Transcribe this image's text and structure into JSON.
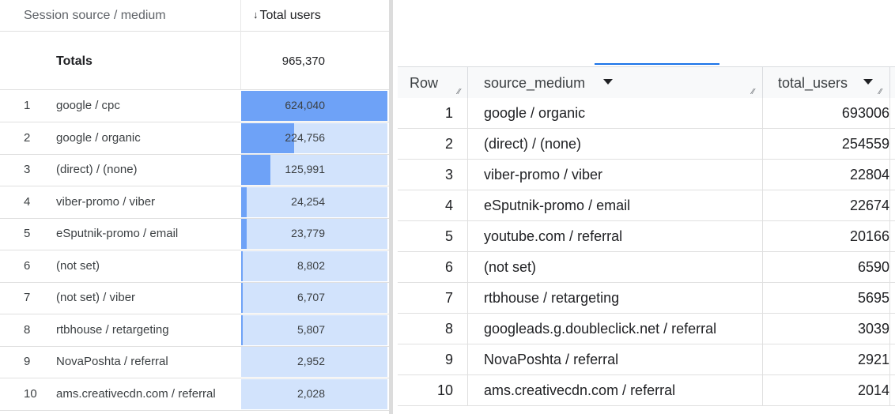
{
  "ga_table": {
    "header": {
      "dimension": "Session source / medium",
      "metric_arrow": "↓",
      "metric": "Total users"
    },
    "totals": {
      "label": "Totals",
      "value": "965,370"
    },
    "bar_color": "#6ea2f7",
    "cell_color": "#d2e3fc",
    "rows": [
      {
        "index": "1",
        "dimension": "google / cpc",
        "value": "624,040",
        "share": 1.0
      },
      {
        "index": "2",
        "dimension": "google / organic",
        "value": "224,756",
        "share": 0.36
      },
      {
        "index": "3",
        "dimension": "(direct) / (none)",
        "value": "125,991",
        "share": 0.2
      },
      {
        "index": "4",
        "dimension": "viber-promo / viber",
        "value": "24,254",
        "share": 0.04
      },
      {
        "index": "5",
        "dimension": "eSputnik-promo / email",
        "value": "23,779",
        "share": 0.04
      },
      {
        "index": "6",
        "dimension": "(not set)",
        "value": "8,802",
        "share": 0.01
      },
      {
        "index": "7",
        "dimension": "(not set) / viber",
        "value": "6,707",
        "share": 0.01
      },
      {
        "index": "8",
        "dimension": "rtbhouse / retargeting",
        "value": "5,807",
        "share": 0.01
      },
      {
        "index": "9",
        "dimension": "NovaPoshta / referral",
        "value": "2,952",
        "share": 0.0
      },
      {
        "index": "10",
        "dimension": "ams.creativecdn.com / referral",
        "value": "2,028",
        "share": 0.0
      }
    ]
  },
  "bq_table": {
    "columns": {
      "row": "Row",
      "source_medium": "source_medium",
      "total_users": "total_users"
    },
    "rows": [
      {
        "index": "1",
        "source_medium": "google / organic",
        "total_users": "693006"
      },
      {
        "index": "2",
        "source_medium": "(direct) / (none)",
        "total_users": "254559"
      },
      {
        "index": "3",
        "source_medium": "viber-promo / viber",
        "total_users": "22804"
      },
      {
        "index": "4",
        "source_medium": "eSputnik-promo / email",
        "total_users": "22674"
      },
      {
        "index": "5",
        "source_medium": "youtube.com / referral",
        "total_users": "20166"
      },
      {
        "index": "6",
        "source_medium": "(not set)",
        "total_users": "6590"
      },
      {
        "index": "7",
        "source_medium": "rtbhouse / retargeting",
        "total_users": "5695"
      },
      {
        "index": "8",
        "source_medium": "googleads.g.doubleclick.net / referral",
        "total_users": "3039"
      },
      {
        "index": "9",
        "source_medium": "NovaPoshta / referral",
        "total_users": "2921"
      },
      {
        "index": "10",
        "source_medium": "ams.creativecdn.com / referral",
        "total_users": "2014"
      }
    ]
  }
}
